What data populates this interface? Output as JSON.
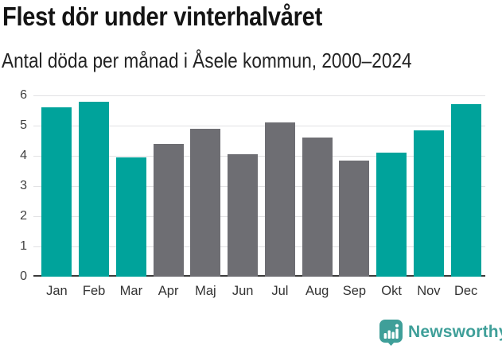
{
  "header": {
    "title": "Flest dör under vinterhalvåret",
    "subtitle": "Antal döda per månad i Åsele kommun, 2000–2024"
  },
  "chart_data": {
    "type": "bar",
    "title": "Flest dör under vinterhalvåret",
    "subtitle": "Antal döda per månad i Åsele kommun, 2000–2024",
    "categories": [
      "Jan",
      "Feb",
      "Mar",
      "Apr",
      "Maj",
      "Jun",
      "Jul",
      "Aug",
      "Sep",
      "Okt",
      "Nov",
      "Dec"
    ],
    "values": [
      5.6,
      5.8,
      3.95,
      4.4,
      4.9,
      4.05,
      5.1,
      4.6,
      3.85,
      4.1,
      4.85,
      5.7
    ],
    "highlighted": [
      true,
      true,
      true,
      false,
      false,
      false,
      false,
      false,
      false,
      true,
      true,
      true
    ],
    "highlight_color": "#00a39b",
    "base_color": "#6e6e73",
    "xlabel": "",
    "ylabel": "",
    "ylim": [
      0,
      6
    ],
    "y_ticks": [
      0,
      1,
      2,
      3,
      4,
      5,
      6
    ],
    "grid": true,
    "legend_position": "none",
    "gridline_color": "#e1e1e3",
    "axis_line_color": "#3a3a3a"
  },
  "footer": {
    "brand_label": "Newsworthy",
    "brand_color": "#3f9f99",
    "brand_icon": "bar-chart-speech-bubble-icon"
  }
}
